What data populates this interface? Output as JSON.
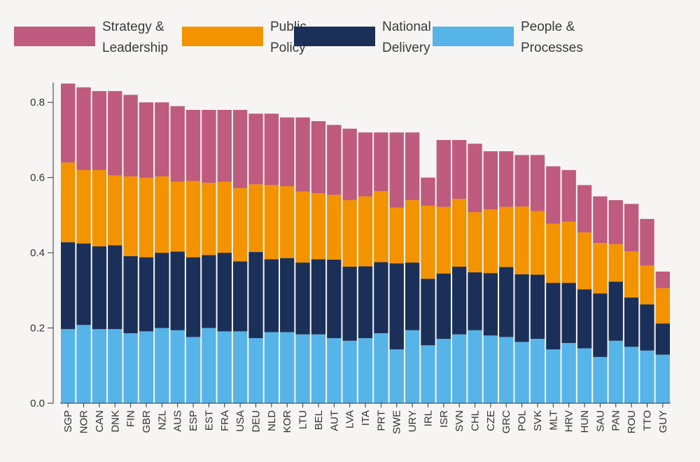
{
  "chart_data": {
    "type": "bar",
    "stacked": true,
    "title": "",
    "xlabel": "",
    "ylabel": "",
    "ylim": [
      0,
      0.86
    ],
    "yticks": [
      "0.0",
      "0.2",
      "0.4",
      "0.6",
      "0.8"
    ],
    "ytick_values": [
      0,
      0.2,
      0.4,
      0.6,
      0.8
    ],
    "legend_position": "top",
    "categories": [
      "SGP",
      "NOR",
      "CAN",
      "DNK",
      "FIN",
      "GBR",
      "NZL",
      "AUS",
      "ESP",
      "EST",
      "FRA",
      "USA",
      "DEU",
      "NLD",
      "KOR",
      "LTU",
      "BEL",
      "AUT",
      "LVA",
      "ITA",
      "PRT",
      "SWE",
      "URY",
      "IRL",
      "ISR",
      "SVN",
      "CHL",
      "CZE",
      "GRC",
      "POL",
      "SVK",
      "MLT",
      "HRV",
      "HUN",
      "SAU",
      "PAN",
      "ROU",
      "TTO",
      "GUY"
    ],
    "series": [
      {
        "name": "People & Processes",
        "legend_lines": [
          "People &",
          "Processes"
        ],
        "color": "#56b4e9",
        "values": [
          0.197,
          0.208,
          0.197,
          0.197,
          0.186,
          0.191,
          0.2,
          0.194,
          0.176,
          0.2,
          0.191,
          0.191,
          0.173,
          0.189,
          0.189,
          0.183,
          0.183,
          0.173,
          0.166,
          0.173,
          0.186,
          0.143,
          0.194,
          0.154,
          0.171,
          0.183,
          0.194,
          0.18,
          0.176,
          0.163,
          0.171,
          0.143,
          0.16,
          0.146,
          0.123,
          0.166,
          0.15,
          0.14,
          0.129
        ]
      },
      {
        "name": "National Delivery",
        "legend_lines": [
          "National",
          "Delivery"
        ],
        "color": "#1b3058",
        "values": [
          0.231,
          0.217,
          0.22,
          0.223,
          0.205,
          0.197,
          0.2,
          0.209,
          0.212,
          0.194,
          0.209,
          0.186,
          0.229,
          0.194,
          0.197,
          0.191,
          0.2,
          0.209,
          0.197,
          0.191,
          0.189,
          0.229,
          0.18,
          0.177,
          0.174,
          0.18,
          0.154,
          0.166,
          0.186,
          0.18,
          0.171,
          0.177,
          0.16,
          0.157,
          0.169,
          0.157,
          0.131,
          0.123,
          0.083
        ]
      },
      {
        "name": "Public Policy",
        "legend_lines": [
          "Public",
          "Policy"
        ],
        "color": "#f39300",
        "values": [
          0.212,
          0.195,
          0.203,
          0.186,
          0.212,
          0.211,
          0.203,
          0.186,
          0.203,
          0.192,
          0.189,
          0.195,
          0.18,
          0.197,
          0.191,
          0.189,
          0.175,
          0.172,
          0.177,
          0.186,
          0.189,
          0.148,
          0.166,
          0.194,
          0.177,
          0.18,
          0.16,
          0.169,
          0.16,
          0.18,
          0.169,
          0.157,
          0.163,
          0.151,
          0.134,
          0.1,
          0.123,
          0.103,
          0.094
        ]
      },
      {
        "name": "Strategy & Leadership",
        "legend_lines": [
          "Strategy &",
          "Leadership"
        ],
        "color": "#be5b7e",
        "values": [
          0.21,
          0.22,
          0.21,
          0.224,
          0.217,
          0.201,
          0.197,
          0.201,
          0.189,
          0.194,
          0.191,
          0.208,
          0.188,
          0.19,
          0.183,
          0.197,
          0.192,
          0.186,
          0.19,
          0.17,
          0.156,
          0.2,
          0.18,
          0.075,
          0.178,
          0.157,
          0.182,
          0.155,
          0.148,
          0.137,
          0.149,
          0.153,
          0.137,
          0.126,
          0.124,
          0.117,
          0.126,
          0.124,
          0.044
        ]
      }
    ],
    "legend_order": [
      3,
      2,
      1,
      0
    ]
  }
}
